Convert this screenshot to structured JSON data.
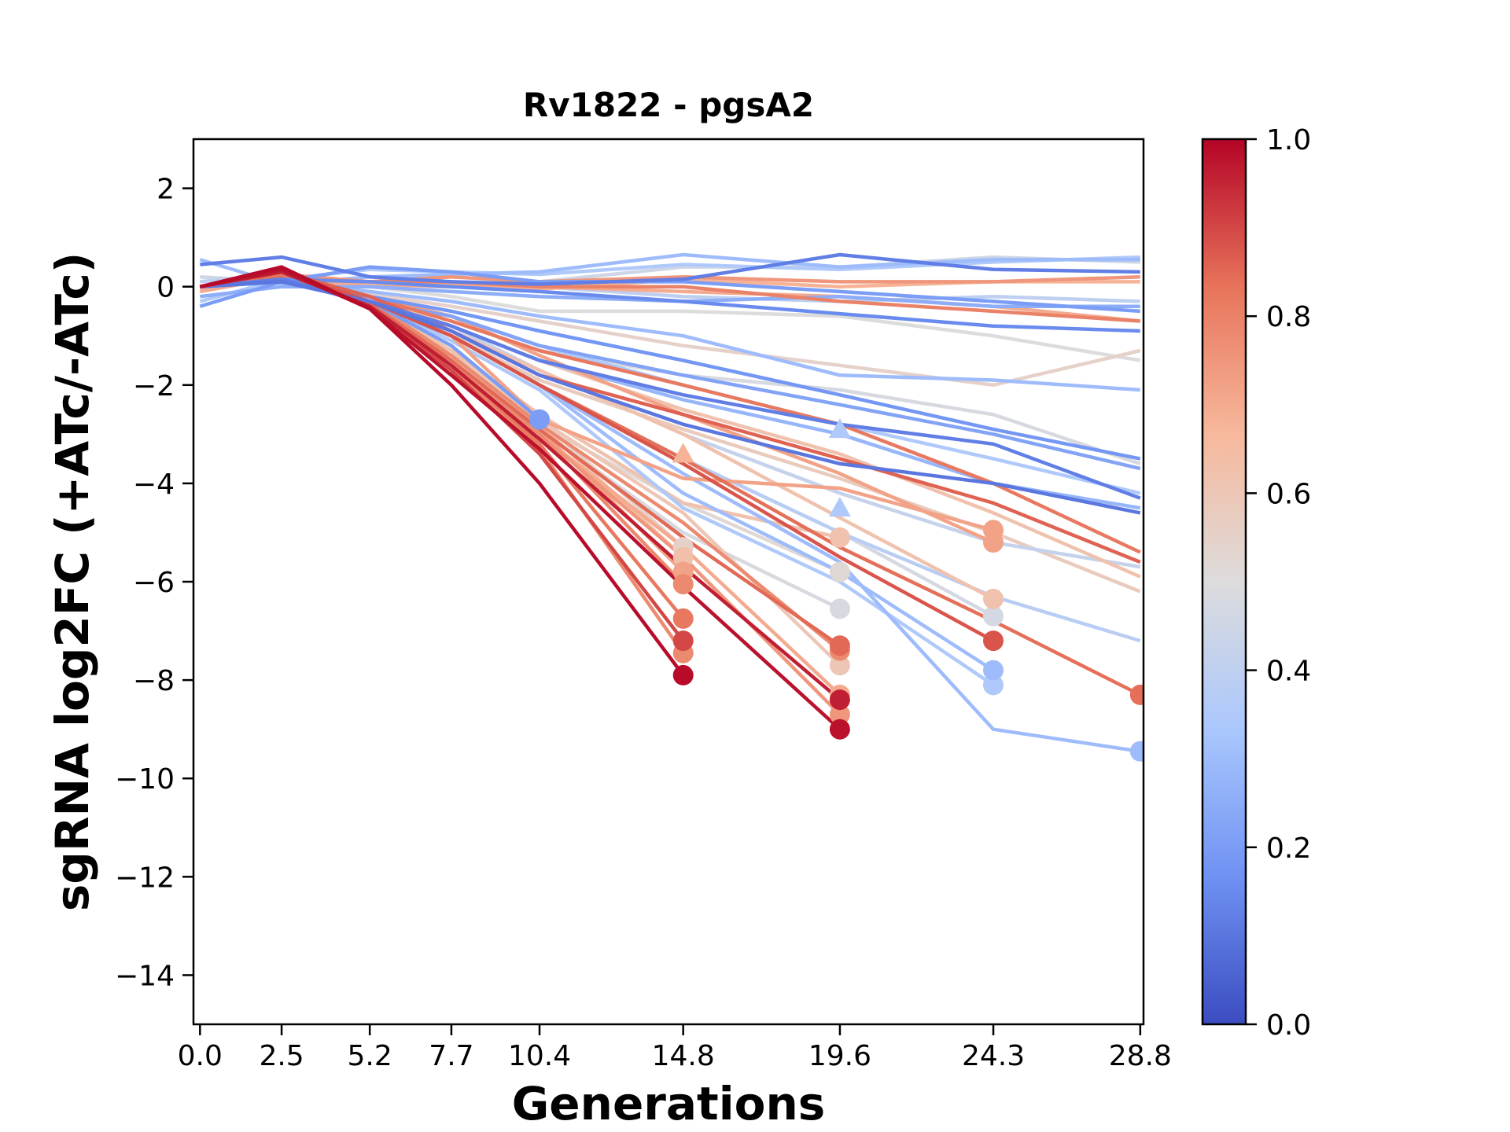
{
  "chart_data": {
    "type": "line",
    "title": "Rv1822 - pgsA2",
    "xlabel": "Generations",
    "ylabel": "sgRNA log2FC (+ATc/-ATc)",
    "x_ticks": [
      "0.0",
      "2.5",
      "5.2",
      "7.7",
      "10.4",
      "14.8",
      "19.6",
      "24.3",
      "28.8"
    ],
    "x_values": [
      0.0,
      2.5,
      5.2,
      7.7,
      10.4,
      14.8,
      19.6,
      24.3,
      28.8
    ],
    "y_ticks": [
      "2",
      "0",
      "−2",
      "−4",
      "−6",
      "−8",
      "−10",
      "−12",
      "−14"
    ],
    "y_tick_values": [
      2,
      0,
      -2,
      -4,
      -6,
      -8,
      -10,
      -12,
      -14
    ],
    "xlim": [
      -0.2,
      28.9
    ],
    "ylim": [
      -15,
      3
    ],
    "grid": false,
    "legend": "none",
    "colorbar": {
      "ticks": [
        "0.0",
        "0.2",
        "0.4",
        "0.6",
        "0.8",
        "1.0"
      ],
      "tick_values": [
        0.0,
        0.2,
        0.4,
        0.6,
        0.8,
        1.0
      ],
      "colormap": "coolwarm",
      "colors": [
        "#3b4cc0",
        "#6f92f3",
        "#aac7fd",
        "#dddcdc",
        "#f7b89c",
        "#e7745b",
        "#b40426"
      ]
    },
    "series": [
      {
        "c": 0.12,
        "y": [
          0.45,
          0.6,
          0.2,
          0.1,
          0.05,
          0.15,
          0.65,
          0.35,
          0.3
        ]
      },
      {
        "c": 0.3,
        "y": [
          0.55,
          0.05,
          0.2,
          0.25,
          0.3,
          0.65,
          0.4,
          0.55,
          0.55
        ]
      },
      {
        "c": 0.35,
        "y": [
          -0.3,
          0.15,
          0.35,
          0.3,
          0.25,
          0.45,
          0.35,
          0.5,
          0.6
        ]
      },
      {
        "c": 0.2,
        "y": [
          -0.4,
          0.1,
          0.4,
          0.3,
          0.1,
          0.1,
          -0.1,
          -0.3,
          -0.5
        ]
      },
      {
        "c": 0.15,
        "y": [
          0.0,
          0.15,
          0.1,
          0.0,
          -0.1,
          -0.3,
          -0.55,
          -0.8,
          -0.9
        ]
      },
      {
        "c": 0.25,
        "y": [
          -0.2,
          0.0,
          0.0,
          -0.1,
          -0.2,
          -0.3,
          -0.2,
          -0.4,
          -0.4
        ]
      },
      {
        "c": 0.4,
        "y": [
          0.1,
          0.25,
          0.05,
          0.1,
          0.0,
          -0.2,
          -0.3,
          -0.2,
          -0.3
        ]
      },
      {
        "c": 0.45,
        "y": [
          0.2,
          0.1,
          0.0,
          0.0,
          0.1,
          0.4,
          0.4,
          0.6,
          0.5
        ]
      },
      {
        "c": 0.5,
        "y": [
          0.0,
          0.1,
          0.0,
          -0.2,
          -0.5,
          -0.5,
          -0.6,
          -1.0,
          -1.5
        ]
      },
      {
        "c": 0.7,
        "y": [
          -0.1,
          0.2,
          0.0,
          0.05,
          0.0,
          -0.1,
          -0.2,
          -0.4,
          -0.7
        ]
      },
      {
        "c": 0.75,
        "y": [
          0.0,
          0.25,
          0.1,
          0.2,
          0.1,
          0.2,
          0.1,
          0.1,
          0.2
        ]
      },
      {
        "c": 0.8,
        "y": [
          0.0,
          0.15,
          0.1,
          0.1,
          0.0,
          0.0,
          -0.3,
          -0.5,
          -0.7
        ]
      },
      {
        "c": 0.68,
        "y": [
          -0.05,
          0.2,
          0.05,
          0.0,
          -0.05,
          0.15,
          0.0,
          0.1,
          0.1
        ]
      },
      {
        "c": 0.3,
        "y": [
          0.0,
          0.1,
          -0.1,
          -0.3,
          -0.6,
          -1.0,
          -1.8,
          -1.9,
          -2.1
        ]
      },
      {
        "c": 0.55,
        "y": [
          0.0,
          0.15,
          -0.15,
          -0.4,
          -0.7,
          -1.2,
          -1.6,
          -2.0,
          -1.3
        ]
      },
      {
        "c": 0.22,
        "y": [
          0.0,
          0.1,
          -0.3,
          -0.6,
          -1.2,
          -1.8,
          -2.4,
          -3.0,
          -3.7
        ]
      },
      {
        "c": 0.12,
        "y": [
          0.0,
          0.15,
          -0.3,
          -0.8,
          -1.5,
          -2.2,
          -2.8,
          -3.2,
          -4.3
        ]
      },
      {
        "c": 0.18,
        "y": [
          0.0,
          0.1,
          -0.2,
          -0.5,
          -0.9,
          -1.5,
          -2.2,
          -2.9,
          -3.5
        ]
      },
      {
        "c": 0.48,
        "y": [
          0.0,
          0.15,
          -0.2,
          -0.7,
          -1.3,
          -1.8,
          -2.1,
          -2.6,
          -3.6
        ]
      },
      {
        "c": 0.35,
        "y": [
          0.0,
          0.1,
          -0.25,
          -0.6,
          -1.2,
          -2.0,
          -2.8,
          -3.5,
          -4.2
        ]
      },
      {
        "c": 0.1,
        "y": [
          0.0,
          0.1,
          -0.3,
          -0.9,
          -1.8,
          -2.8,
          -3.6,
          -4.0,
          -4.6
        ]
      },
      {
        "c": 0.28,
        "y": [
          0.0,
          0.1,
          -0.3,
          -0.8,
          -1.5,
          -2.3,
          -3.0,
          -4.0,
          -4.5
        ]
      },
      {
        "c": 0.82,
        "y": [
          0.0,
          0.2,
          -0.2,
          -0.7,
          -1.3,
          -2.0,
          -2.8,
          -4.0,
          -5.4
        ]
      },
      {
        "c": 0.86,
        "y": [
          0.0,
          0.3,
          -0.2,
          -0.9,
          -1.8,
          -2.6,
          -3.5,
          -4.4,
          -5.6
        ]
      },
      {
        "c": 0.62,
        "y": [
          0.0,
          0.2,
          -0.2,
          -0.8,
          -1.5,
          -2.5,
          -3.4,
          -4.6,
          -5.9
        ]
      },
      {
        "c": 0.58,
        "y": [
          0.0,
          0.15,
          -0.3,
          -1.0,
          -1.9,
          -2.9,
          -3.9,
          -5.0,
          -6.2
        ]
      },
      {
        "c": 0.42,
        "y": [
          0.0,
          0.1,
          -0.3,
          -0.8,
          -1.7,
          -3.0,
          -4.2,
          -5.2,
          -5.7
        ]
      },
      {
        "c": 0.38,
        "y": [
          0.0,
          0.1,
          -0.3,
          -1.0,
          -2.0,
          -3.5,
          -5.0,
          -6.3,
          -7.2
        ]
      },
      {
        "c": 0.3,
        "y": [
          0.0,
          0.15,
          -0.35,
          -1.0,
          -2.0,
          -3.8,
          -5.6,
          -9.0,
          -9.45
        ]
      },
      {
        "c": 0.3,
        "y": [
          0.0,
          0.1,
          -0.3,
          -1.0,
          -2.0,
          -4.2,
          -5.8,
          -7.8,
          null
        ]
      },
      {
        "c": 0.35,
        "y": [
          0.0,
          0.1,
          -0.3,
          -1.1,
          -2.1,
          -4.5,
          -6.0,
          -8.1,
          null
        ]
      },
      {
        "c": 0.47,
        "y": [
          0.0,
          0.1,
          -0.3,
          -0.9,
          -2.0,
          -3.5,
          -5.0,
          -6.7,
          null
        ]
      },
      {
        "c": 0.62,
        "y": [
          0.0,
          0.15,
          -0.3,
          -0.9,
          -1.7,
          -3.0,
          -4.7,
          -6.35,
          null
        ]
      },
      {
        "c": 0.88,
        "y": [
          0.0,
          0.3,
          -0.3,
          -1.0,
          -2.0,
          -3.6,
          -5.5,
          -7.2,
          null
        ]
      },
      {
        "c": 0.72,
        "y": [
          0.0,
          0.2,
          -0.2,
          -0.6,
          -1.4,
          -2.6,
          -3.8,
          -5.2,
          null
        ]
      },
      {
        "c": 0.84,
        "y": [
          0.0,
          0.2,
          -0.3,
          -1.0,
          -2.0,
          -3.5,
          -5.3,
          -6.8,
          -8.3
        ]
      },
      {
        "c": 0.72,
        "y": [
          0.0,
          0.2,
          -0.3,
          -1.0,
          -2.7,
          -3.9,
          -4.1,
          -4.95,
          null
        ]
      },
      {
        "c": 0.52,
        "y": [
          0.0,
          0.1,
          -0.3,
          -1.2,
          -2.8,
          -4.4,
          -5.8,
          null,
          null
        ]
      },
      {
        "c": 0.48,
        "y": [
          0.0,
          0.15,
          -0.3,
          -1.3,
          -2.9,
          -5.0,
          -6.55,
          null,
          null
        ]
      },
      {
        "c": 0.62,
        "y": [
          0.0,
          0.2,
          -0.3,
          -1.3,
          -2.6,
          -4.4,
          -5.1,
          null,
          null
        ]
      },
      {
        "c": 0.6,
        "y": [
          0.0,
          0.2,
          -0.3,
          -1.4,
          -2.7,
          -4.6,
          -7.7,
          null,
          null
        ]
      },
      {
        "c": 0.78,
        "y": [
          0.0,
          0.25,
          -0.3,
          -1.4,
          -2.8,
          -4.8,
          -7.4,
          null,
          null
        ]
      },
      {
        "c": 0.85,
        "y": [
          0.0,
          0.3,
          -0.35,
          -1.5,
          -2.9,
          -5.1,
          -7.3,
          null,
          null
        ]
      },
      {
        "c": 0.7,
        "y": [
          0.0,
          0.2,
          -0.3,
          -1.6,
          -3.0,
          -5.3,
          -8.3,
          null,
          null
        ]
      },
      {
        "c": 0.75,
        "y": [
          0.0,
          0.2,
          -0.3,
          -1.5,
          -3.0,
          -5.5,
          -8.7,
          null,
          null
        ]
      },
      {
        "c": 0.96,
        "y": [
          0.0,
          0.3,
          -0.4,
          -1.6,
          -3.1,
          -5.7,
          -8.4,
          null,
          null
        ]
      },
      {
        "c": 0.98,
        "y": [
          0.0,
          0.35,
          -0.45,
          -1.8,
          -3.3,
          -6.1,
          -9.0,
          null,
          null
        ]
      },
      {
        "c": 0.55,
        "y": [
          0.0,
          0.1,
          -0.3,
          -1.3,
          -2.7,
          -5.3,
          null,
          null,
          null
        ]
      },
      {
        "c": 0.63,
        "y": [
          0.0,
          0.15,
          -0.3,
          -1.4,
          -2.8,
          -5.5,
          null,
          null,
          null
        ]
      },
      {
        "c": 0.72,
        "y": [
          0.0,
          0.2,
          -0.3,
          -1.5,
          -2.9,
          -5.8,
          null,
          null,
          null
        ]
      },
      {
        "c": 0.78,
        "y": [
          0.0,
          0.25,
          -0.3,
          -1.5,
          -3.0,
          -6.05,
          null,
          null,
          null
        ]
      },
      {
        "c": 0.82,
        "y": [
          0.0,
          0.25,
          -0.35,
          -1.6,
          -3.2,
          -6.75,
          null,
          null,
          null
        ]
      },
      {
        "c": 0.78,
        "y": [
          0.0,
          0.25,
          -0.35,
          -1.6,
          -3.3,
          -7.45,
          null,
          null,
          null
        ]
      },
      {
        "c": 0.9,
        "y": [
          0.0,
          0.3,
          -0.4,
          -1.7,
          -3.4,
          -7.2,
          null,
          null,
          null
        ]
      },
      {
        "c": 0.99,
        "y": [
          0.0,
          0.4,
          -0.45,
          -2.0,
          -4.0,
          -7.9,
          null,
          null,
          null
        ]
      },
      {
        "c": 0.2,
        "y": [
          0.0,
          0.1,
          -0.3,
          -1.2,
          -2.7,
          null,
          null,
          null,
          null
        ]
      }
    ],
    "triangles": [
      {
        "c": 0.68,
        "x": 14.8,
        "y": -3.4
      },
      {
        "c": 0.35,
        "x": 19.6,
        "y": -2.9
      },
      {
        "c": 0.35,
        "x": 19.6,
        "y": -4.5
      }
    ]
  }
}
